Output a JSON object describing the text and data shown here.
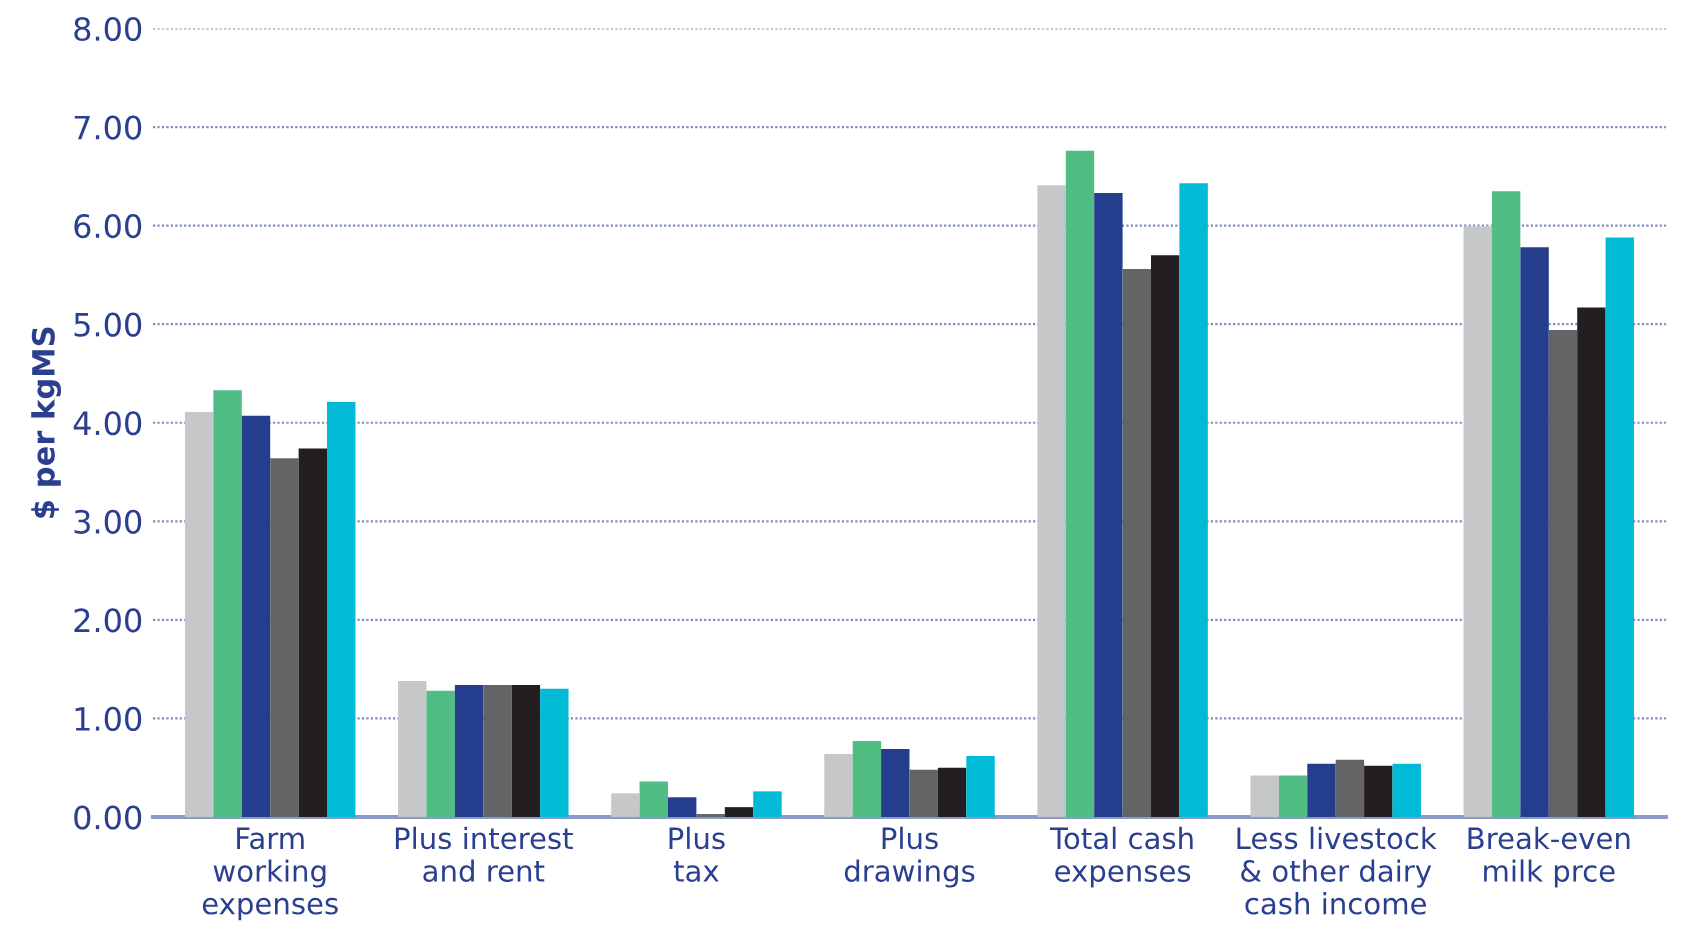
{
  "chart_data": {
    "type": "bar",
    "ylabel": "$ per kgMS",
    "categories": [
      "Farm\nworking\nexpenses",
      "Plus interest\nand rent",
      "Plus\ntax",
      "Plus\ndrawings",
      "Total cash\nexpenses",
      "Less livestock\n& other dairy\ncash income",
      "Break-even\nmilk prce"
    ],
    "series": [
      {
        "color": "#c6c7c9",
        "values": [
          4.11,
          1.38,
          0.24,
          0.64,
          6.41,
          0.42,
          5.99
        ]
      },
      {
        "color": "#50bd84",
        "values": [
          4.33,
          1.28,
          0.36,
          0.77,
          6.76,
          0.42,
          6.35
        ]
      },
      {
        "color": "#243d8c",
        "values": [
          4.07,
          1.34,
          0.2,
          0.69,
          6.33,
          0.54,
          5.78
        ]
      },
      {
        "color": "#636466",
        "values": [
          3.64,
          1.34,
          0.03,
          0.48,
          5.56,
          0.58,
          4.94
        ]
      },
      {
        "color": "#231f20",
        "values": [
          3.74,
          1.34,
          0.1,
          0.5,
          5.7,
          0.52,
          5.17
        ]
      },
      {
        "color": "#00bad6",
        "values": [
          4.21,
          1.3,
          0.26,
          0.62,
          6.43,
          0.54,
          5.88
        ]
      }
    ],
    "ylim": [
      0,
      8
    ],
    "yticks": [
      {
        "value": 0,
        "label": "0.00"
      },
      {
        "value": 1,
        "label": "1.00"
      },
      {
        "value": 2,
        "label": "2.00"
      },
      {
        "value": 3,
        "label": "3.00"
      },
      {
        "value": 4,
        "label": "4.00"
      },
      {
        "value": 5,
        "label": "5.00"
      },
      {
        "value": 6,
        "label": "6.00"
      },
      {
        "value": 7,
        "label": "7.00"
      },
      {
        "value": 8,
        "label": "8.00"
      }
    ],
    "grid": "y",
    "legend": false
  }
}
